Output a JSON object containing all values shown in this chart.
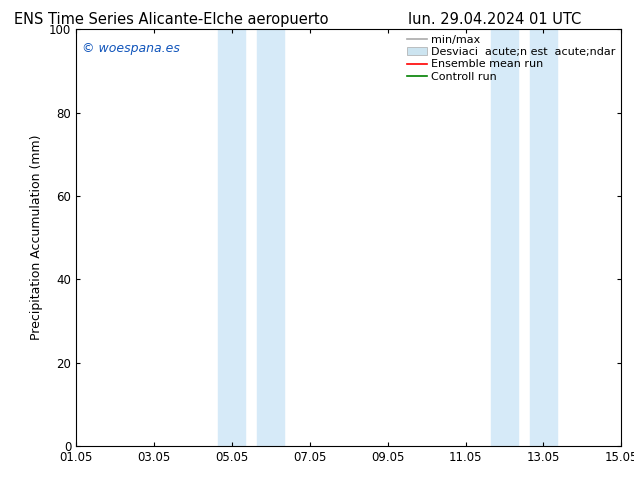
{
  "title_left": "ENS Time Series Alicante-Elche aeropuerto",
  "title_right": "lun. 29.04.2024 01 UTC",
  "ylabel": "Precipitation Accumulation (mm)",
  "watermark": "© woespana.es",
  "watermark_color": "#1155bb",
  "ylim": [
    0,
    100
  ],
  "xlim_start": 0,
  "xlim_end": 14,
  "xtick_labels": [
    "01.05",
    "03.05",
    "05.05",
    "07.05",
    "09.05",
    "11.05",
    "13.05",
    "15.05"
  ],
  "xtick_positions": [
    0,
    2,
    4,
    6,
    8,
    10,
    12,
    14
  ],
  "ytick_labels": [
    "0",
    "20",
    "40",
    "60",
    "80",
    "100"
  ],
  "ytick_positions": [
    0,
    20,
    40,
    60,
    80,
    100
  ],
  "shaded_regions": [
    {
      "xmin": 3.65,
      "xmax": 4.35,
      "color": "#d6eaf8",
      "alpha": 1.0
    },
    {
      "xmin": 4.65,
      "xmax": 5.35,
      "color": "#d6eaf8",
      "alpha": 1.0
    },
    {
      "xmin": 10.65,
      "xmax": 11.35,
      "color": "#d6eaf8",
      "alpha": 1.0
    },
    {
      "xmin": 11.65,
      "xmax": 12.35,
      "color": "#d6eaf8",
      "alpha": 1.0
    }
  ],
  "legend_label_minmax": "min/max",
  "legend_label_std": "Desviaci  acute;n est  acute;ndar",
  "legend_label_ensemble": "Ensemble mean run",
  "legend_label_control": "Controll run",
  "color_minmax": "#aaaaaa",
  "color_std": "#cce4f0",
  "color_ensemble": "#ff0000",
  "color_control": "#008000",
  "bg_color": "#ffffff",
  "plot_bg_color": "#ffffff",
  "title_fontsize": 10.5,
  "label_fontsize": 9,
  "tick_fontsize": 8.5,
  "legend_fontsize": 8
}
